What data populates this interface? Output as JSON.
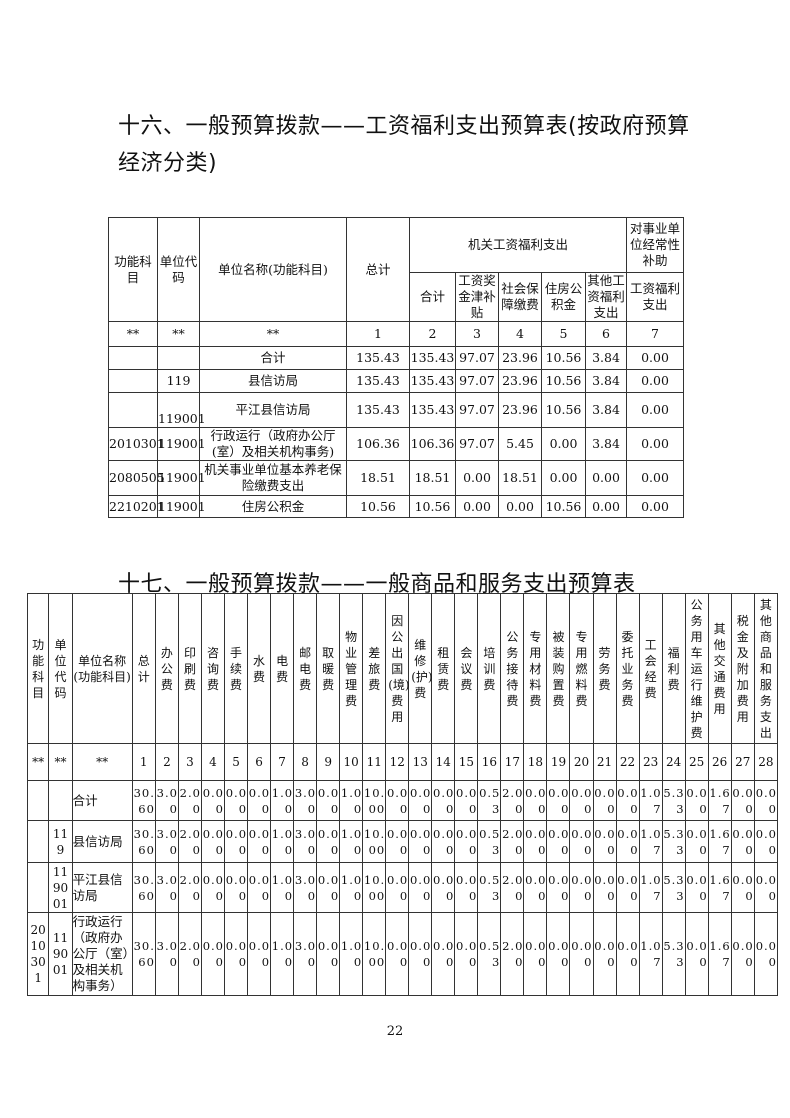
{
  "section16": {
    "title_line1": "十六、一般预算拨款——工资福利支出预算表(按政府预算",
    "title_line2": "经济分类)",
    "headers": {
      "func": "功能科目",
      "unit_code": "单位代码",
      "unit_name": "单位名称(功能科目)",
      "total": "总计",
      "group_agency": "机关工资福利支出",
      "group_subsidy": "对事业单位经常性补助",
      "sub": [
        "合计",
        "工资奖金津补贴",
        "社会保障缴费",
        "住房公积金",
        "其他工资福利支出",
        "工资福利支出"
      ]
    },
    "index_row": [
      "**",
      "**",
      "**",
      "1",
      "2",
      "3",
      "4",
      "5",
      "6",
      "7"
    ],
    "rows": [
      [
        "",
        "",
        "合计",
        "135.43",
        "135.43",
        "97.07",
        "23.96",
        "10.56",
        "3.84",
        "0.00"
      ],
      [
        "",
        "119",
        "县信访局",
        "135.43",
        "135.43",
        "97.07",
        "23.96",
        "10.56",
        "3.84",
        "0.00"
      ],
      [
        "",
        "119001",
        "平江县信访局",
        "135.43",
        "135.43",
        "97.07",
        "23.96",
        "10.56",
        "3.84",
        "0.00"
      ],
      [
        "2010301",
        "119001",
        "行政运行（政府办公厅(室）及相关机构事务)",
        "106.36",
        "106.36",
        "97.07",
        "5.45",
        "0.00",
        "3.84",
        "0.00"
      ],
      [
        "2080505",
        "119001",
        "机关事业单位基本养老保险缴费支出",
        "18.51",
        "18.51",
        "0.00",
        "18.51",
        "0.00",
        "0.00",
        "0.00"
      ],
      [
        "2210201",
        "119001",
        "住房公积金",
        "10.56",
        "10.56",
        "0.00",
        "0.00",
        "10.56",
        "0.00",
        "0.00"
      ]
    ]
  },
  "section17": {
    "title": "十七、一般预算拨款——一般商品和服务支出预算表",
    "headers": [
      "功能科目",
      "单位代码",
      "单位名称(功能科目)",
      "总计",
      "办公费",
      "印刷费",
      "咨询费",
      "手续费",
      "水费",
      "电费",
      "邮电费",
      "取暖费",
      "物业管理费",
      "差旅费",
      "因公出国(境)费用",
      "维修(护)费",
      "租赁费",
      "会议费",
      "培训费",
      "公务接待费",
      "专用材料费",
      "被装购置费",
      "专用燃料费",
      "劳务费",
      "委托业务费",
      "工会经费",
      "福利费",
      "公务用车运行维护费",
      "其他交通费用",
      "税金及附加费用",
      "其他商品和服务支出"
    ],
    "index_row": [
      "**",
      "**",
      "**",
      "1",
      "2",
      "3",
      "4",
      "5",
      "6",
      "7",
      "8",
      "9",
      "10",
      "11",
      "12",
      "13",
      "14",
      "15",
      "16",
      "17",
      "18",
      "19",
      "20",
      "21",
      "22",
      "23",
      "24",
      "25",
      "26",
      "27",
      "28"
    ],
    "rows": [
      [
        "",
        "",
        "合计",
        "30.60",
        "3.00",
        "2.00",
        "0.00",
        "0.00",
        "0.00",
        "1.00",
        "3.00",
        "0.00",
        "1.00",
        "10.00",
        "0.00",
        "0.00",
        "0.00",
        "0.00",
        "0.53",
        "2.00",
        "0.00",
        "0.00",
        "0.00",
        "0.00",
        "0.00",
        "1.07",
        "5.33",
        "0.00",
        "1.67",
        "0.00",
        "0.00"
      ],
      [
        "",
        "119",
        "县信访局",
        "30.60",
        "3.00",
        "2.00",
        "0.00",
        "0.00",
        "0.00",
        "1.00",
        "3.00",
        "0.00",
        "1.00",
        "10.00",
        "0.00",
        "0.00",
        "0.00",
        "0.00",
        "0.53",
        "2.00",
        "0.00",
        "0.00",
        "0.00",
        "0.00",
        "0.00",
        "1.07",
        "5.33",
        "0.00",
        "1.67",
        "0.00",
        "0.00"
      ],
      [
        "",
        "119001",
        "平江县信访局",
        "30.60",
        "3.00",
        "2.00",
        "0.00",
        "0.00",
        "0.00",
        "1.00",
        "3.00",
        "0.00",
        "1.00",
        "10.00",
        "0.00",
        "0.00",
        "0.00",
        "0.00",
        "0.53",
        "2.00",
        "0.00",
        "0.00",
        "0.00",
        "0.00",
        "0.00",
        "1.07",
        "5.33",
        "0.00",
        "1.67",
        "0.00",
        "0.00"
      ],
      [
        "2010301",
        "119001",
        "行政运行（政府办公厅（室）及相关机构事务）",
        "30.60",
        "3.00",
        "2.00",
        "0.00",
        "0.00",
        "0.00",
        "1.00",
        "3.00",
        "0.00",
        "1.00",
        "10.00",
        "0.00",
        "0.00",
        "0.00",
        "0.00",
        "0.53",
        "2.00",
        "0.00",
        "0.00",
        "0.00",
        "0.00",
        "0.00",
        "1.07",
        "5.33",
        "0.00",
        "1.67",
        "0.00",
        "0.00"
      ]
    ]
  },
  "page_number": "22"
}
